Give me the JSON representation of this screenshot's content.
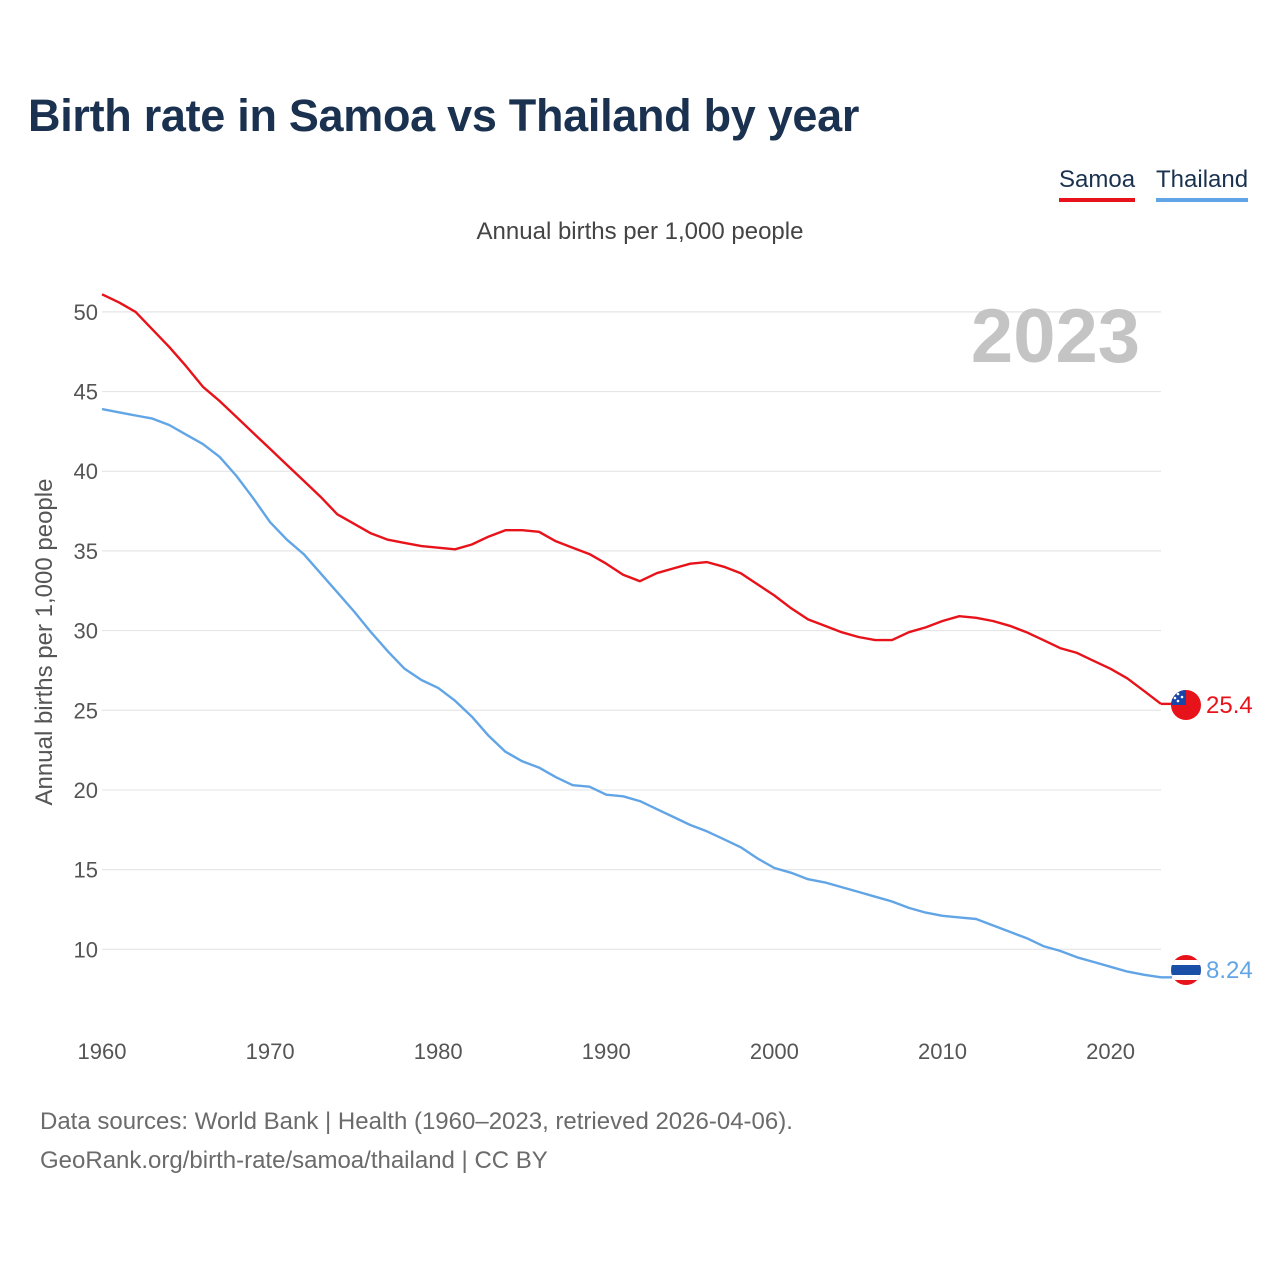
{
  "title": "Birth rate in Samoa vs Thailand by year",
  "subtitle": "Annual births per 1,000 people",
  "legend": {
    "samoa": "Samoa",
    "thailand": "Thailand"
  },
  "source_line_1": "Data sources: World Bank | Health (1960–2023, retrieved 2026-04-06).",
  "source_line_2": "GeoRank.org/birth-rate/samoa/thailand | CC BY",
  "colors": {
    "samoa": "#e8131a",
    "thailand": "#62a5e6",
    "grid": "#e6e6e6"
  },
  "chart_data": {
    "type": "line",
    "title": "Birth rate in Samoa vs Thailand by year",
    "subtitle": "Annual births per 1,000 people",
    "xlabel": "",
    "ylabel": "Annual births per 1,000 people",
    "xlim": [
      1960,
      2023
    ],
    "ylim": [
      5.5,
      52
    ],
    "x_ticks": [
      1960,
      1970,
      1980,
      1990,
      2000,
      2010,
      2020
    ],
    "y_ticks": [
      10,
      15,
      20,
      25,
      30,
      35,
      40,
      45,
      50
    ],
    "grid": true,
    "legend_position": "top-right",
    "year_label": "2023",
    "x": [
      1960,
      1961,
      1962,
      1963,
      1964,
      1965,
      1966,
      1967,
      1968,
      1969,
      1970,
      1971,
      1972,
      1973,
      1974,
      1975,
      1976,
      1977,
      1978,
      1979,
      1980,
      1981,
      1982,
      1983,
      1984,
      1985,
      1986,
      1987,
      1988,
      1989,
      1990,
      1991,
      1992,
      1993,
      1994,
      1995,
      1996,
      1997,
      1998,
      1999,
      2000,
      2001,
      2002,
      2003,
      2004,
      2005,
      2006,
      2007,
      2008,
      2009,
      2010,
      2011,
      2012,
      2013,
      2014,
      2015,
      2016,
      2017,
      2018,
      2019,
      2020,
      2021,
      2022,
      2023
    ],
    "series": [
      {
        "name": "Samoa",
        "color": "#e8131a",
        "end_label": "25.4",
        "values": [
          51.1,
          50.6,
          50.0,
          48.9,
          47.8,
          46.6,
          45.3,
          44.4,
          43.4,
          42.4,
          41.4,
          40.4,
          39.4,
          38.4,
          37.3,
          36.7,
          36.1,
          35.7,
          35.5,
          35.3,
          35.2,
          35.1,
          35.4,
          35.9,
          36.3,
          36.3,
          36.2,
          35.6,
          35.2,
          34.8,
          34.2,
          33.5,
          33.1,
          33.6,
          33.9,
          34.2,
          34.3,
          34.0,
          33.6,
          32.9,
          32.2,
          31.4,
          30.7,
          30.3,
          29.9,
          29.6,
          29.4,
          29.4,
          29.9,
          30.2,
          30.6,
          30.9,
          30.8,
          30.6,
          30.3,
          29.9,
          29.4,
          28.9,
          28.6,
          28.1,
          27.6,
          27.0,
          26.2,
          25.4
        ]
      },
      {
        "name": "Thailand",
        "color": "#62a5e6",
        "end_label": "8.24",
        "values": [
          43.9,
          43.7,
          43.5,
          43.3,
          42.9,
          42.3,
          41.7,
          40.9,
          39.7,
          38.3,
          36.8,
          35.7,
          34.8,
          33.6,
          32.4,
          31.2,
          29.9,
          28.7,
          27.6,
          26.9,
          26.4,
          25.6,
          24.6,
          23.4,
          22.4,
          21.8,
          21.4,
          20.8,
          20.3,
          20.2,
          19.7,
          19.6,
          19.3,
          18.8,
          18.3,
          17.8,
          17.4,
          16.9,
          16.4,
          15.7,
          15.1,
          14.8,
          14.4,
          14.2,
          13.9,
          13.6,
          13.3,
          13.0,
          12.6,
          12.3,
          12.1,
          12.0,
          11.9,
          11.5,
          11.1,
          10.7,
          10.2,
          9.9,
          9.5,
          9.2,
          8.9,
          8.6,
          8.4,
          8.24
        ]
      }
    ]
  }
}
